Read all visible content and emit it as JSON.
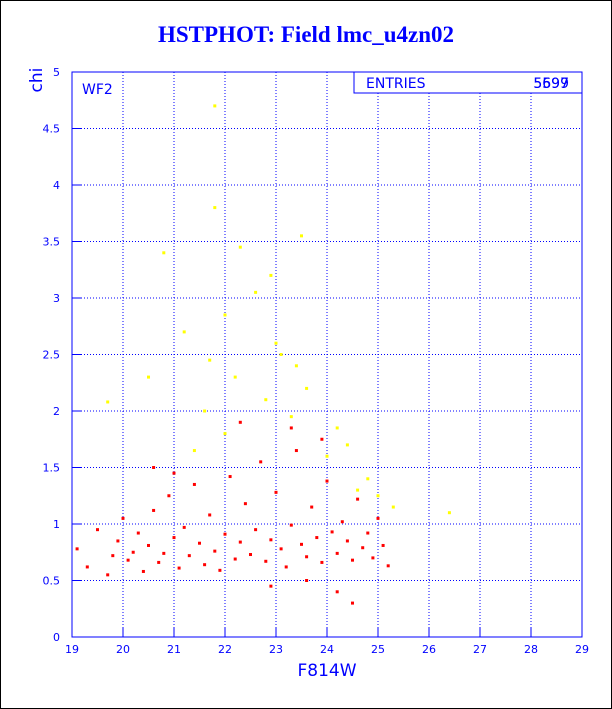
{
  "title": "HSTPHOT: Field lmc_u4zn02",
  "chart_data": {
    "type": "scatter",
    "title": "HSTPHOT: Field lmc_u4zn02",
    "panel_label": "WF2",
    "xlabel": "F814W",
    "ylabel": "chi",
    "xlim": [
      19,
      29
    ],
    "ylim": [
      0,
      5
    ],
    "x_ticks": [
      "19",
      "20",
      "21",
      "22",
      "23",
      "24",
      "25",
      "26",
      "27",
      "28",
      "29"
    ],
    "y_ticks": [
      "0",
      "0.5",
      "1",
      "1.5",
      "2",
      "2.5",
      "3",
      "3.5",
      "4",
      "4.5",
      "5"
    ],
    "grid": true,
    "stats_box": {
      "label": "ENTRIES",
      "values": [
        "5599",
        "5697"
      ]
    },
    "colors": {
      "text": "#0000ff",
      "red_points": "#ff0000",
      "yellow_points": "#ffff00",
      "axes": "#0000ff"
    },
    "series": [
      {
        "color": "#ff0000",
        "points": [
          [
            19.1,
            0.78
          ],
          [
            19.3,
            0.62
          ],
          [
            19.5,
            0.95
          ],
          [
            19.7,
            0.55
          ],
          [
            19.8,
            0.72
          ],
          [
            19.9,
            0.85
          ],
          [
            20.0,
            1.05
          ],
          [
            20.1,
            0.68
          ],
          [
            20.2,
            0.75
          ],
          [
            20.3,
            0.92
          ],
          [
            20.4,
            0.58
          ],
          [
            20.5,
            0.81
          ],
          [
            20.6,
            1.12
          ],
          [
            20.7,
            0.66
          ],
          [
            20.8,
            0.74
          ],
          [
            20.9,
            1.25
          ],
          [
            21.0,
            0.88
          ],
          [
            21.1,
            0.61
          ],
          [
            21.2,
            0.97
          ],
          [
            21.3,
            0.72
          ],
          [
            21.4,
            1.35
          ],
          [
            21.5,
            0.83
          ],
          [
            21.6,
            0.64
          ],
          [
            21.7,
            1.08
          ],
          [
            21.8,
            0.76
          ],
          [
            21.9,
            0.59
          ],
          [
            22.0,
            0.91
          ],
          [
            22.1,
            1.42
          ],
          [
            22.2,
            0.69
          ],
          [
            22.3,
            0.84
          ],
          [
            22.4,
            1.18
          ],
          [
            22.5,
            0.73
          ],
          [
            22.6,
            0.95
          ],
          [
            22.7,
            1.55
          ],
          [
            22.8,
            0.67
          ],
          [
            22.9,
            0.86
          ],
          [
            23.0,
            1.28
          ],
          [
            23.1,
            0.78
          ],
          [
            23.2,
            0.62
          ],
          [
            23.3,
            0.99
          ],
          [
            23.4,
            1.65
          ],
          [
            23.5,
            0.82
          ],
          [
            23.6,
            0.71
          ],
          [
            23.7,
            1.15
          ],
          [
            23.8,
            0.88
          ],
          [
            23.9,
            0.66
          ],
          [
            24.0,
            1.38
          ],
          [
            24.1,
            0.93
          ],
          [
            24.2,
            0.74
          ],
          [
            24.3,
            1.02
          ],
          [
            24.4,
            0.85
          ],
          [
            24.5,
            0.68
          ],
          [
            24.6,
            1.22
          ],
          [
            24.7,
            0.79
          ],
          [
            24.8,
            0.92
          ],
          [
            24.9,
            0.7
          ],
          [
            25.0,
            1.05
          ],
          [
            25.1,
            0.81
          ],
          [
            25.2,
            0.63
          ],
          [
            22.3,
            1.9
          ],
          [
            23.3,
            1.85
          ],
          [
            23.9,
            1.75
          ],
          [
            24.5,
            0.3
          ],
          [
            24.2,
            0.4
          ],
          [
            20.6,
            1.5
          ],
          [
            21.0,
            1.45
          ],
          [
            22.9,
            0.45
          ],
          [
            23.6,
            0.5
          ]
        ]
      },
      {
        "color": "#ffff00",
        "points": [
          [
            19.7,
            2.08
          ],
          [
            20.8,
            3.4
          ],
          [
            21.8,
            4.7
          ],
          [
            21.8,
            3.8
          ],
          [
            22.3,
            3.45
          ],
          [
            23.5,
            3.55
          ],
          [
            22.6,
            3.05
          ],
          [
            22.0,
            2.85
          ],
          [
            21.2,
            2.7
          ],
          [
            21.7,
            2.45
          ],
          [
            22.2,
            2.3
          ],
          [
            23.0,
            2.6
          ],
          [
            23.4,
            2.4
          ],
          [
            21.6,
            2.0
          ],
          [
            22.0,
            1.8
          ],
          [
            23.3,
            1.95
          ],
          [
            24.0,
            1.6
          ],
          [
            24.4,
            1.7
          ],
          [
            24.8,
            1.4
          ],
          [
            25.0,
            1.25
          ],
          [
            24.6,
            1.3
          ],
          [
            25.3,
            1.15
          ],
          [
            26.4,
            1.1
          ],
          [
            22.8,
            2.1
          ],
          [
            23.6,
            2.2
          ],
          [
            21.4,
            1.65
          ],
          [
            24.2,
            1.85
          ],
          [
            23.1,
            2.5
          ],
          [
            22.9,
            3.2
          ],
          [
            20.5,
            2.3
          ]
        ]
      }
    ]
  }
}
